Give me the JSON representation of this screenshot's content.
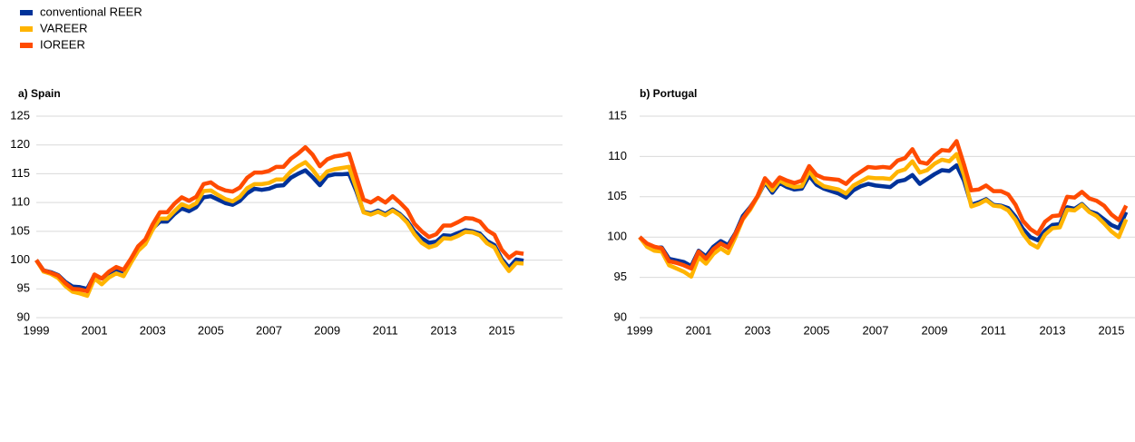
{
  "chart_data": [
    {
      "type": "line",
      "title": "a) Spain",
      "categories": [
        "1999",
        null,
        null,
        null,
        null,
        null,
        null,
        null,
        "2001",
        null,
        null,
        null,
        null,
        null,
        null,
        null,
        "2003",
        null,
        null,
        null,
        null,
        null,
        null,
        null,
        "2005",
        null,
        null,
        null,
        null,
        null,
        null,
        null,
        "2007",
        null,
        null,
        null,
        null,
        null,
        null,
        null,
        "2009",
        null,
        null,
        null,
        null,
        null,
        null,
        null,
        "2011",
        null,
        null,
        null,
        null,
        null,
        null,
        null,
        "2013",
        null,
        null,
        null,
        null,
        null,
        null,
        null,
        "2015",
        null,
        null,
        null
      ],
      "series": [
        {
          "name": "conventional REER",
          "color": "#003299",
          "values": [
            100,
            98.2,
            97.9,
            97.4,
            96.2,
            95.4,
            95.3,
            95.0,
            97.4,
            96.8,
            97.8,
            98.4,
            98.0,
            99.8,
            102.0,
            103.2,
            105.5,
            106.7,
            106.7,
            108.0,
            109.0,
            108.5,
            109.2,
            110.9,
            111.1,
            110.5,
            109.9,
            109.6,
            110.3,
            111.6,
            112.4,
            112.2,
            112.4,
            112.9,
            113.0,
            114.3,
            115.0,
            115.6,
            114.4,
            113.0,
            114.6,
            114.9,
            114.9,
            115.0,
            112.0,
            108.4,
            108.1,
            108.6,
            108.0,
            108.8,
            108.0,
            106.8,
            105.0,
            103.8,
            103.0,
            103.2,
            104.3,
            104.2,
            104.7,
            105.2,
            105.0,
            104.6,
            103.3,
            102.6,
            100.2,
            98.7,
            100.1,
            99.9
          ]
        },
        {
          "name": "VAREER",
          "color": "#ffb400",
          "values": [
            100,
            98,
            97.6,
            96.9,
            95.5,
            94.5,
            94.2,
            93.8,
            96.8,
            95.8,
            97.0,
            97.7,
            97.2,
            99.5,
            101.6,
            102.8,
            105.3,
            107.2,
            107.2,
            108.5,
            109.7,
            109.2,
            109.9,
            112.0,
            112.1,
            111.3,
            110.6,
            110.2,
            111.0,
            112.5,
            113.2,
            113.2,
            113.4,
            114.0,
            114.0,
            115.4,
            116.3,
            117.0,
            115.7,
            114.0,
            115.4,
            115.8,
            116.0,
            116.2,
            112.5,
            108.3,
            107.9,
            108.4,
            107.8,
            108.6,
            107.8,
            106.5,
            104.5,
            103.0,
            102.2,
            102.6,
            103.8,
            103.7,
            104.2,
            104.9,
            104.8,
            104.3,
            102.9,
            102.2,
            99.8,
            98.1,
            99.5,
            99.4
          ]
        },
        {
          "name": "IOREER",
          "color": "#ff4b00",
          "values": [
            100,
            98.2,
            97.8,
            97.3,
            96,
            95,
            94.9,
            94.6,
            97.5,
            96.8,
            98.0,
            98.8,
            98.3,
            100.2,
            102.4,
            103.6,
            106.2,
            108.3,
            108.3,
            109.8,
            110.9,
            110.3,
            111.0,
            113.2,
            113.5,
            112.6,
            112.1,
            111.9,
            112.6,
            114.3,
            115.2,
            115.2,
            115.5,
            116.2,
            116.2,
            117.6,
            118.5,
            119.6,
            118.3,
            116.3,
            117.5,
            118.0,
            118.2,
            118.5,
            114.5,
            110.5,
            110.0,
            110.8,
            110.0,
            111.1,
            110.0,
            108.7,
            106.3,
            105.0,
            104.0,
            104.5,
            106.0,
            106.0,
            106.6,
            107.3,
            107.2,
            106.7,
            105.2,
            104.4,
            101.8,
            100.4,
            101.3,
            101.1
          ]
        }
      ],
      "ylim": [
        90,
        125
      ],
      "yticks": [
        90,
        95,
        100,
        105,
        110,
        115,
        120,
        125
      ],
      "grid": true
    },
    {
      "type": "line",
      "title": "b) Portugal",
      "categories": [
        "1999",
        null,
        null,
        null,
        null,
        null,
        null,
        null,
        "2001",
        null,
        null,
        null,
        null,
        null,
        null,
        null,
        "2003",
        null,
        null,
        null,
        null,
        null,
        null,
        null,
        "2005",
        null,
        null,
        null,
        null,
        null,
        null,
        null,
        "2007",
        null,
        null,
        null,
        null,
        null,
        null,
        null,
        "2009",
        null,
        null,
        null,
        null,
        null,
        null,
        null,
        "2011",
        null,
        null,
        null,
        null,
        null,
        null,
        null,
        "2013",
        null,
        null,
        null,
        null,
        null,
        null,
        null,
        "2015",
        null,
        null
      ],
      "series": [
        {
          "color": "#003299",
          "values": [
            100,
            99.0,
            98.7,
            98.7,
            97.3,
            97.1,
            96.9,
            96.4,
            98.3,
            97.6,
            98.8,
            99.5,
            99.0,
            100.5,
            102.6,
            103.7,
            105.0,
            106.8,
            105.5,
            106.7,
            106.2,
            105.9,
            106.0,
            107.6,
            106.5,
            106.0,
            105.7,
            105.4,
            104.9,
            105.8,
            106.3,
            106.6,
            106.4,
            106.3,
            106.2,
            106.9,
            107.1,
            107.7,
            106.6,
            107.2,
            107.8,
            108.3,
            108.2,
            108.9,
            107.0,
            104.0,
            104.3,
            104.7,
            104.0,
            103.9,
            103.6,
            102.5,
            101.0,
            100.0,
            99.6,
            100.8,
            101.5,
            101.6,
            103.7,
            103.5,
            104.1,
            103.2,
            102.9,
            102.2,
            101.5,
            101.1,
            103.1
          ]
        },
        {
          "color": "#ffb400",
          "values": [
            100,
            98.8,
            98.3,
            98.2,
            96.5,
            96.1,
            95.7,
            95.1,
            97.5,
            96.7,
            97.9,
            98.6,
            98.0,
            100.0,
            102.2,
            103.4,
            105.0,
            107.0,
            105.8,
            107.0,
            106.5,
            106.2,
            106.3,
            108.2,
            106.9,
            106.3,
            106.1,
            105.9,
            105.4,
            106.4,
            106.9,
            107.4,
            107.3,
            107.3,
            107.2,
            108.1,
            108.4,
            109.4,
            108.0,
            108.3,
            109.1,
            109.6,
            109.4,
            110.3,
            107.7,
            103.8,
            104.1,
            104.6,
            103.9,
            103.8,
            103.3,
            102.1,
            100.4,
            99.2,
            98.7,
            100.3,
            101.1,
            101.2,
            103.4,
            103.3,
            104.0,
            103.1,
            102.6,
            101.7,
            100.7,
            100.0,
            102.2
          ]
        },
        {
          "color": "#ff4b00",
          "values": [
            100,
            99.2,
            98.8,
            98.6,
            97.0,
            96.8,
            96.5,
            96.1,
            98.2,
            97.3,
            98.5,
            99.2,
            98.7,
            100.4,
            102.3,
            103.6,
            105.1,
            107.3,
            106.3,
            107.4,
            107.0,
            106.7,
            107.0,
            108.8,
            107.7,
            107.3,
            107.2,
            107.1,
            106.6,
            107.5,
            108.1,
            108.7,
            108.6,
            108.7,
            108.6,
            109.5,
            109.8,
            110.9,
            109.3,
            109.1,
            110.1,
            110.8,
            110.7,
            111.9,
            109.0,
            105.8,
            105.9,
            106.4,
            105.7,
            105.7,
            105.3,
            104.0,
            102.0,
            101.0,
            100.4,
            101.9,
            102.6,
            102.7,
            105.0,
            104.9,
            105.6,
            104.8,
            104.5,
            103.9,
            102.8,
            102.1,
            103.9
          ]
        }
      ],
      "ylim": [
        90,
        115
      ],
      "yticks": [
        90,
        95,
        100,
        105,
        110,
        115
      ],
      "grid": true
    }
  ]
}
